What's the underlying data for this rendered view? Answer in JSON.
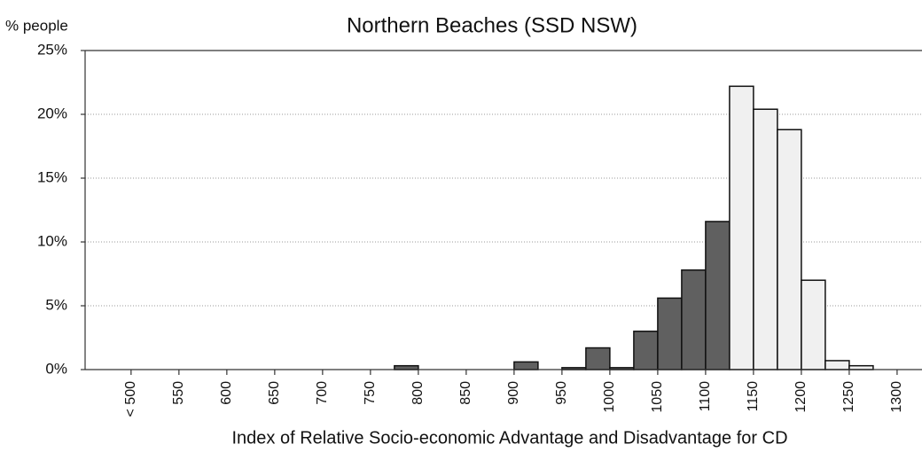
{
  "chart_data": {
    "type": "histogram",
    "title": "Northern Beaches (SSD NSW)",
    "y_label": "% people",
    "x_label": "Index of Relative Socio-economic Advantage and Disadvantage for CD",
    "bins": [
      450,
      475,
      500,
      525,
      550,
      575,
      600,
      625,
      650,
      675,
      700,
      725,
      750,
      775,
      800,
      825,
      850,
      875,
      900,
      925,
      950,
      975,
      1000,
      1025,
      1050,
      1075,
      1100,
      1125,
      1150,
      1175,
      1200,
      1225,
      1250,
      1275,
      1300,
      1325
    ],
    "values": [
      0,
      0,
      0,
      0,
      0,
      0,
      0,
      0,
      0,
      0,
      0,
      0,
      0,
      0.3,
      0,
      0,
      0,
      0,
      0.6,
      0,
      0.15,
      1.7,
      0.15,
      3.0,
      5.6,
      7.8,
      11.6,
      22.2,
      20.4,
      18.8,
      7.0,
      0.7,
      0.3,
      0,
      0
    ],
    "colors": [
      "#606060",
      "#606060",
      "#606060",
      "#606060",
      "#606060",
      "#606060",
      "#606060",
      "#606060",
      "#606060",
      "#606060",
      "#606060",
      "#606060",
      "#606060",
      "#606060",
      "#606060",
      "#606060",
      "#606060",
      "#606060",
      "#606060",
      "#606060",
      "#606060",
      "#606060",
      "#606060",
      "#606060",
      "#606060",
      "#606060",
      "#606060",
      "#f0f0f0",
      "#f0f0f0",
      "#f0f0f0",
      "#f0f0f0",
      "#f0f0f0",
      "#f0f0f0",
      "#f0f0f0",
      "#f0f0f0"
    ],
    "xlim": [
      452,
      1326
    ],
    "xticks": [
      {
        "value": 500,
        "label": "< 500"
      },
      550,
      600,
      650,
      700,
      750,
      800,
      850,
      900,
      950,
      1000,
      1050,
      1100,
      1150,
      1200,
      1250,
      1300
    ],
    "ylim": [
      0,
      25
    ],
    "yticks": [
      {
        "value": 0,
        "label": "0%"
      },
      {
        "value": 5,
        "label": "5%"
      },
      {
        "value": 10,
        "label": "10%"
      },
      {
        "value": 15,
        "label": "15%"
      },
      {
        "value": 20,
        "label": "20%"
      },
      {
        "value": 25,
        "label": "25%"
      }
    ],
    "grid": true
  }
}
